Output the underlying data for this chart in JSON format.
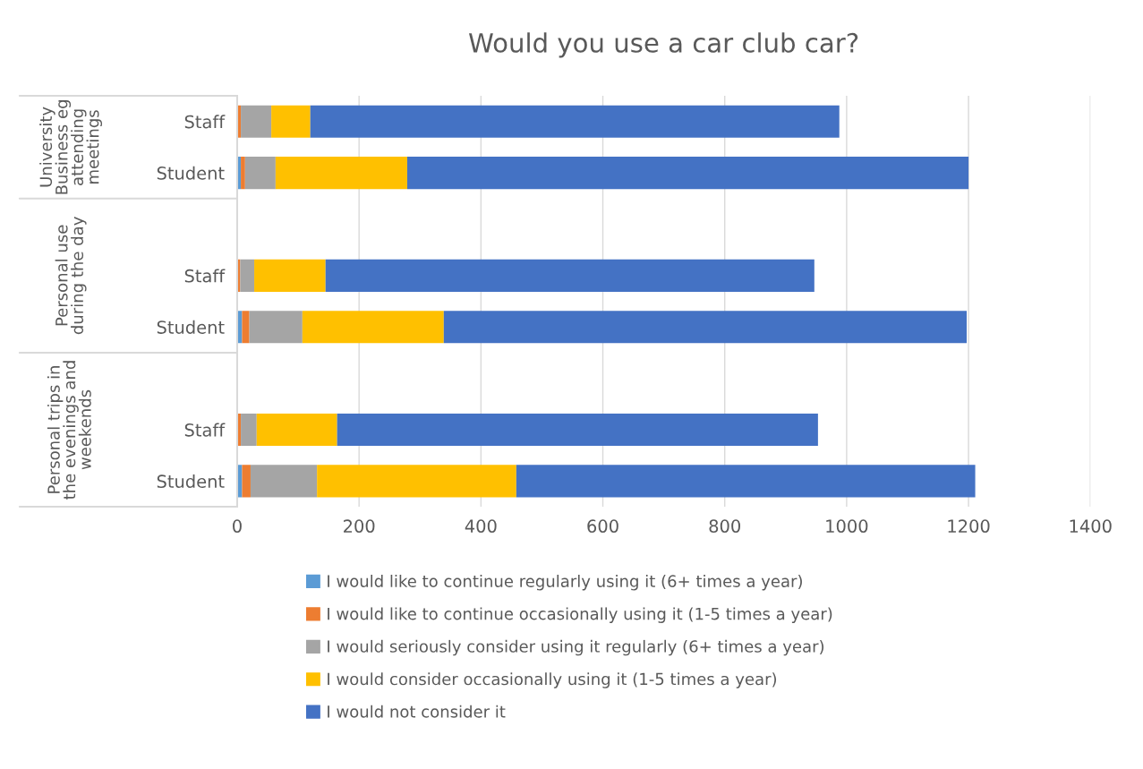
{
  "chart_data": {
    "type": "bar",
    "orientation": "horizontal",
    "stacked": true,
    "title": "Would you use a car club car?",
    "categories": [
      "Staff",
      "Student",
      null,
      "Staff",
      "Student",
      null,
      "Staff",
      "Student"
    ],
    "series": [
      {
        "name": "I would like to continue regularly using it (6+ times a year)",
        "color": "#5b9bd5",
        "values": [
          0,
          6,
          null,
          0,
          8,
          null,
          0,
          8
        ]
      },
      {
        "name": "I would like to continue occasionally using it (1-5 times a year)",
        "color": "#ed7d31",
        "values": [
          6,
          7,
          null,
          5,
          12,
          null,
          6,
          14
        ]
      },
      {
        "name": "I would seriously consider using it regularly (6+ times a year)",
        "color": "#a5a5a5",
        "values": [
          50,
          50,
          null,
          23,
          87,
          null,
          26,
          109
        ]
      },
      {
        "name": "I would consider occasionally using it (1-5 times a year)",
        "color": "#ffc000",
        "values": [
          64,
          216,
          null,
          117,
          232,
          null,
          132,
          327
        ]
      },
      {
        "name": "I would not consider it",
        "color": "#4472c4",
        "values": [
          868,
          921,
          null,
          802,
          858,
          null,
          789,
          753
        ]
      }
    ],
    "xlim": [
      0,
      1400
    ],
    "xticks": [
      0,
      200,
      400,
      600,
      800,
      1000,
      1200,
      1400
    ],
    "annotations": [
      "University\nBusiness eg\nattending\nmeetings",
      "Personal use\nduring the day",
      "Personal trips in\nthe evenings and\nweekends"
    ],
    "grid": "x",
    "legend": "bottom"
  }
}
